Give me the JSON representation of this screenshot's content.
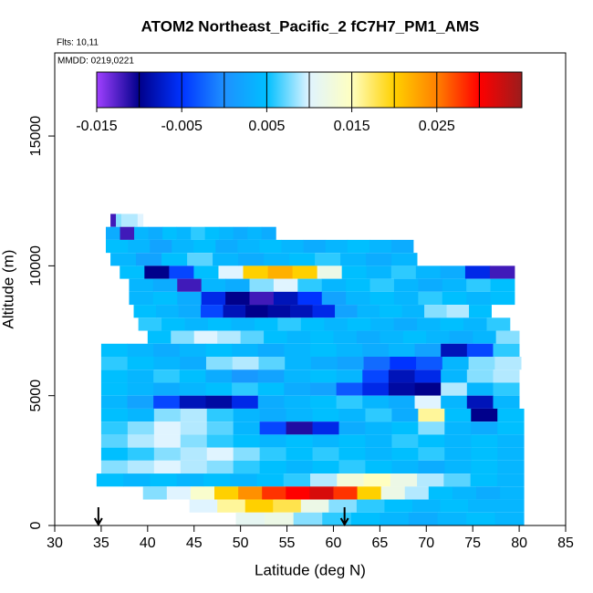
{
  "chart_data": {
    "type": "strip_heatmap",
    "title": "ATOM2 Northeast_Pacific_2 fC7H7_PM1_AMS",
    "notes": [
      "Flts: 10,11",
      "MMDD: 0219,0221"
    ],
    "x_label": "Latitude (deg N)",
    "y_label": "Altitude (m)",
    "xlim": [
      30,
      85
    ],
    "xticks": [
      30,
      35,
      40,
      45,
      50,
      55,
      60,
      65,
      70,
      75,
      80,
      85
    ],
    "ylim": [
      0,
      18200
    ],
    "yticks": [
      0,
      5000,
      10000,
      15000
    ],
    "clim": [
      -0.015,
      0.035
    ],
    "cticks": [
      -0.015,
      -0.005,
      0.005,
      0.015,
      0.025
    ],
    "colorbar_breaks": [
      -0.01,
      -0.005,
      0,
      0.005,
      0.01,
      0.015,
      0.02,
      0.025,
      0.03
    ],
    "colors": [
      "#a040ff",
      "#00008b",
      "#0033ff",
      "#1e90ff",
      "#00bfff",
      "#e0f4ff",
      "#ffffc0",
      "#ffd000",
      "#ff8000",
      "#ff0000",
      "#9b1c1c"
    ],
    "arrows_x": [
      34.7,
      61.2
    ],
    "strips": [
      {
        "alt": [
          11500,
          12000
        ],
        "lat": [
          36,
          39.5
        ],
        "values": [
          -0.012,
          0.008,
          0.009,
          0.009,
          0.009,
          0.01
        ]
      },
      {
        "alt": [
          11000,
          11500
        ],
        "lat": [
          35.5,
          53.8
        ],
        "values": [
          0.003,
          -0.012,
          0.004,
          0.003,
          0.005,
          0.004,
          0.006,
          0.005,
          0.004,
          0.003,
          0.004,
          0.003
        ]
      },
      {
        "alt": [
          10500,
          11000
        ],
        "lat": [
          35.5,
          68.6
        ],
        "values": [
          0.005,
          0.004,
          0.002,
          0.004,
          0.005,
          0.003,
          0.004,
          0.005,
          0.004,
          0.003,
          0.004,
          0.005,
          0.004,
          0.003
        ]
      },
      {
        "alt": [
          10000,
          10500
        ],
        "lat": [
          36,
          69
        ],
        "values": [
          0.004,
          0.002,
          0.005,
          0.007,
          0.004,
          0.003,
          0.004,
          0.005,
          0.006,
          0.004,
          0.003,
          0.004
        ]
      },
      {
        "alt": [
          9500,
          10000
        ],
        "lat": [
          37,
          79.5
        ],
        "values": [
          0.005,
          -0.01,
          -0.004,
          0.005,
          0.01,
          0.02,
          0.022,
          0.02,
          0.012,
          0.005,
          0.004,
          0.006,
          0.004,
          0.003,
          -0.006,
          -0.012
        ]
      },
      {
        "alt": [
          9000,
          9500
        ],
        "lat": [
          38,
          79.5
        ],
        "values": [
          0.004,
          0.003,
          -0.012,
          0.004,
          0.003,
          0.008,
          0.01,
          0.006,
          0.004,
          0.005,
          0.006,
          0.004,
          0.003,
          0.004,
          0.006,
          0.005
        ]
      },
      {
        "alt": [
          8500,
          9000
        ],
        "lat": [
          38,
          79.5
        ],
        "values": [
          0.004,
          0.005,
          0.003,
          -0.006,
          -0.01,
          -0.012,
          -0.008,
          -0.005,
          0.002,
          0.004,
          0.005,
          0.004,
          0.006,
          0.005,
          0.004,
          0.005
        ]
      },
      {
        "alt": [
          8000,
          8500
        ],
        "lat": [
          38.5,
          77
        ],
        "values": [
          0.005,
          0.004,
          0.003,
          -0.004,
          -0.008,
          -0.01,
          -0.009,
          -0.008,
          -0.006,
          0.002,
          0.004,
          0.005,
          0.004,
          0.008,
          0.009,
          0.005
        ]
      },
      {
        "alt": [
          7500,
          8000
        ],
        "lat": [
          39,
          79
        ],
        "values": [
          0.006,
          0.005,
          0.004,
          0.005,
          0.004,
          0.005,
          0.006,
          0.005,
          0.004,
          0.005,
          0.004,
          0.003,
          0.004,
          0.005,
          0.004,
          0.006
        ]
      },
      {
        "alt": [
          7000,
          7500
        ],
        "lat": [
          40,
          80
        ],
        "values": [
          0.005,
          0.008,
          0.01,
          0.009,
          0.007,
          0.005,
          0.004,
          0.005,
          0.004,
          0.003,
          0.004,
          0.005,
          0.004,
          0.003,
          0.004,
          0.008
        ]
      },
      {
        "alt": [
          6500,
          7000
        ],
        "lat": [
          35,
          80
        ],
        "values": [
          0.005,
          0.004,
          0.003,
          0.004,
          0.005,
          0.004,
          0.003,
          0.004,
          0.005,
          0.004,
          0.003,
          0.004,
          0.002,
          -0.008,
          -0.004,
          0.006
        ]
      },
      {
        "alt": [
          6000,
          6500
        ],
        "lat": [
          35,
          80.2
        ],
        "values": [
          0.006,
          0.005,
          0.004,
          0.003,
          0.008,
          0.009,
          0.007,
          0.004,
          0.003,
          0.002,
          -0.002,
          -0.005,
          -0.003,
          0.004,
          0.008,
          0.009
        ]
      },
      {
        "alt": [
          5500,
          6000
        ],
        "lat": [
          35,
          80
        ],
        "values": [
          0.005,
          0.004,
          0.006,
          0.005,
          0.003,
          0.001,
          0.002,
          0.004,
          0.005,
          0.004,
          -0.004,
          -0.008,
          -0.006,
          0.004,
          0.008,
          0.009
        ]
      },
      {
        "alt": [
          5000,
          5500
        ],
        "lat": [
          35,
          80
        ],
        "values": [
          0.005,
          0.004,
          0.003,
          0.004,
          0.005,
          0.006,
          0.005,
          0.003,
          0.002,
          -0.003,
          -0.006,
          -0.009,
          -0.01,
          0.009,
          0.004,
          0.006
        ]
      },
      {
        "alt": [
          4500,
          5000
        ],
        "lat": [
          35,
          80
        ],
        "values": [
          0.004,
          0.002,
          -0.004,
          -0.008,
          -0.009,
          -0.006,
          0.003,
          0.004,
          0.005,
          0.006,
          0.004,
          0.003,
          0.01,
          0.004,
          -0.008,
          0.004
        ]
      },
      {
        "alt": [
          4000,
          4500
        ],
        "lat": [
          35,
          80.5
        ],
        "values": [
          0.005,
          0.004,
          0.008,
          0.009,
          0.006,
          0.004,
          0.003,
          0.004,
          0.005,
          0.004,
          0.006,
          0.003,
          0.016,
          0.005,
          -0.01,
          0.005
        ]
      },
      {
        "alt": [
          3500,
          4000
        ],
        "lat": [
          35,
          80.5
        ],
        "values": [
          0.006,
          0.008,
          0.01,
          0.009,
          0.007,
          0.004,
          -0.004,
          -0.011,
          -0.006,
          0.003,
          0.004,
          0.005,
          0.008,
          0.004,
          0.003,
          0.005
        ]
      },
      {
        "alt": [
          3000,
          3500
        ],
        "lat": [
          35,
          80.5
        ],
        "values": [
          0.007,
          0.009,
          0.01,
          0.008,
          0.006,
          0.005,
          0.004,
          0.005,
          0.004,
          0.005,
          0.004,
          0.006,
          0.005,
          0.004,
          0.005,
          0.004
        ]
      },
      {
        "alt": [
          2500,
          3000
        ],
        "lat": [
          35,
          80.5
        ],
        "values": [
          0.005,
          0.006,
          0.008,
          0.009,
          0.01,
          0.008,
          0.006,
          0.005,
          0.006,
          0.005,
          0.004,
          0.005,
          0.006,
          0.004,
          0.005,
          0.004
        ]
      },
      {
        "alt": [
          2000,
          2500
        ],
        "lat": [
          35,
          80.5
        ],
        "values": [
          0.008,
          0.009,
          0.01,
          0.009,
          0.008,
          0.006,
          0.005,
          0.004,
          0.005,
          0.006,
          0.005,
          0.004,
          0.003,
          0.004,
          0.005,
          0.004
        ]
      },
      {
        "alt": [
          1500,
          2000
        ],
        "lat": [
          34.5,
          80.5
        ],
        "values": [
          0.005,
          0.004,
          0.005,
          0.004,
          0.005,
          0.004,
          0.005,
          0.006,
          0.009,
          0.013,
          0.015,
          0.012,
          0.009,
          0.007,
          0.005,
          0.004
        ]
      },
      {
        "alt": [
          1000,
          1500
        ],
        "lat": [
          39.5,
          80.5
        ],
        "values": [
          0.008,
          0.01,
          0.014,
          0.02,
          0.024,
          0.028,
          0.03,
          0.032,
          0.028,
          0.02,
          0.012,
          0.009,
          0.005,
          0.004,
          0.003,
          0.004
        ]
      },
      {
        "alt": [
          500,
          1000
        ],
        "lat": [
          44.5,
          80.5
        ],
        "values": [
          0.01,
          0.016,
          0.02,
          0.018,
          0.012,
          0.008,
          0.006,
          0.005,
          0.004,
          0.005,
          0.004,
          0.004
        ]
      },
      {
        "alt": [
          0,
          500
        ],
        "lat": [
          49.5,
          80.5
        ],
        "values": [
          0.011,
          0.012,
          0.008,
          0.006,
          0.005,
          0.004,
          0.003,
          0.004,
          0.005,
          0.004
        ]
      }
    ]
  }
}
